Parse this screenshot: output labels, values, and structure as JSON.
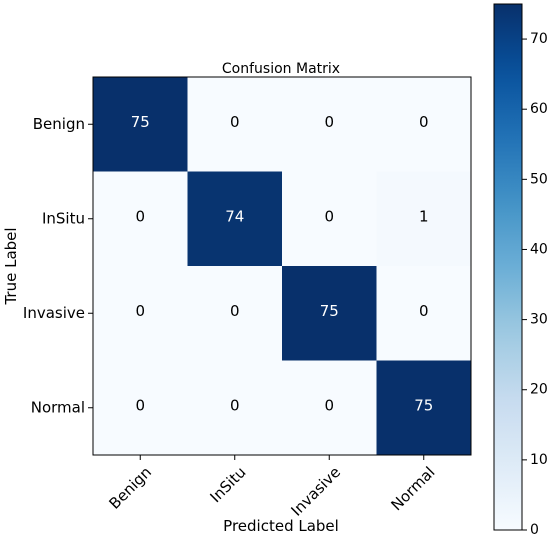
{
  "chart_data": {
    "type": "heatmap",
    "title": "Confusion Matrix",
    "xlabel": "Predicted Label",
    "ylabel": "True Label",
    "x_categories": [
      "Benign",
      "InSitu",
      "Invasive",
      "Normal"
    ],
    "y_categories": [
      "Benign",
      "InSitu",
      "Invasive",
      "Normal"
    ],
    "values": [
      [
        75,
        0,
        0,
        0
      ],
      [
        0,
        74,
        0,
        1
      ],
      [
        0,
        0,
        75,
        0
      ],
      [
        0,
        0,
        0,
        75
      ]
    ],
    "colormap": "Blues",
    "color_low": "#f7fbff",
    "color_high": "#08306b",
    "colorbar": {
      "range": [
        0,
        75
      ],
      "ticks": [
        0,
        10,
        20,
        30,
        40,
        50,
        60,
        70
      ]
    }
  }
}
